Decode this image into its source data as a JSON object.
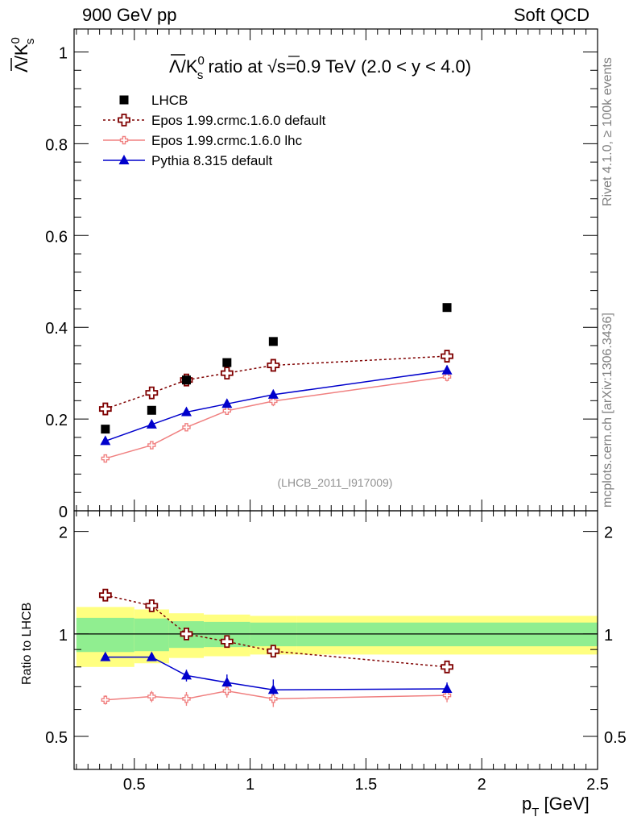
{
  "header": {
    "left": "900 GeV pp",
    "right": "Soft QCD"
  },
  "side": {
    "top": "Rivet 4.1.0, ≥ 100k events",
    "bottom": "mcplots.cern.ch [arXiv:1306.3436]"
  },
  "chart_data": {
    "type": "scatter",
    "title_parts": {
      "ratio": "/K",
      "sup": "0",
      "sub": "s",
      "mid": " ratio at √",
      "s_over": "s",
      "rest": "=0.9 TeV (2.0 < y < 4.0)"
    },
    "ylabel_parts": {
      "num": "Λ",
      "den": "/K",
      "sup": "0",
      "sub": "s"
    },
    "xlabel_parts": {
      "main": "p",
      "sub": "T",
      "unit": " [GeV]"
    },
    "ratio_ylabel": "Ratio to LHCB",
    "watermark": "(LHCB_2011_I917009)",
    "xlim": [
      0.24,
      2.5
    ],
    "ylim_main": [
      0,
      1.05
    ],
    "ylim_ratio": [
      0.4,
      2.3
    ],
    "x_ticks": [
      "0.5",
      "1",
      "1.5",
      "2",
      "2.5"
    ],
    "y_ticks_main": [
      "0",
      "0.2",
      "0.4",
      "0.6",
      "0.8",
      "1"
    ],
    "y_ticks_ratio": [
      "0.5",
      "1",
      "2"
    ],
    "x": [
      0.375,
      0.575,
      0.725,
      0.9,
      1.1,
      1.85
    ],
    "data": {
      "name": "LHCB",
      "values": [
        0.178,
        0.219,
        0.285,
        0.323,
        0.369,
        0.443
      ],
      "color": "#000000"
    },
    "band_bins": [
      0.25,
      0.5,
      0.65,
      0.8,
      1.0,
      1.2,
      2.5
    ],
    "band_inner": [
      0.115,
      0.11,
      0.09,
      0.085,
      0.08,
      0.08
    ],
    "band_outer": [
      0.2,
      0.18,
      0.15,
      0.14,
      0.13,
      0.13
    ],
    "series": [
      {
        "name": "Epos 1.99.crmc.1.6.0 default",
        "color": "#7f0000",
        "marker": "cross-open",
        "dash": "3,3",
        "values": [
          0.222,
          0.257,
          0.285,
          0.3,
          0.317,
          0.337
        ],
        "ratio": [
          1.3,
          1.21,
          1.0,
          0.95,
          0.89,
          0.8
        ],
        "err": [
          0.006,
          0.006,
          0.006,
          0.007,
          0.008,
          0.008
        ],
        "rerr": [
          0.02,
          0.02,
          0.02,
          0.02,
          0.02,
          0.02
        ]
      },
      {
        "name": "Epos 1.99.crmc.1.6.0 lhc",
        "color": "#f08080",
        "marker": "cross-small",
        "dash": "",
        "values": [
          0.114,
          0.143,
          0.182,
          0.218,
          0.239,
          0.292
        ],
        "ratio": [
          0.64,
          0.655,
          0.645,
          0.68,
          0.645,
          0.66
        ],
        "err": [
          0.004,
          0.005,
          0.007,
          0.009,
          0.011,
          0.01
        ],
        "rerr": [
          0.02,
          0.025,
          0.03,
          0.03,
          0.035,
          0.03
        ]
      },
      {
        "name": "Pythia 8.315 default",
        "color": "#0000cc",
        "marker": "triangle",
        "dash": "",
        "values": [
          0.152,
          0.188,
          0.215,
          0.233,
          0.253,
          0.306
        ],
        "ratio": [
          0.855,
          0.855,
          0.755,
          0.72,
          0.685,
          0.69
        ],
        "err": [
          0.004,
          0.005,
          0.006,
          0.009,
          0.011,
          0.011
        ],
        "rerr": [
          0.02,
          0.02,
          0.03,
          0.04,
          0.05,
          0.03
        ]
      }
    ]
  }
}
